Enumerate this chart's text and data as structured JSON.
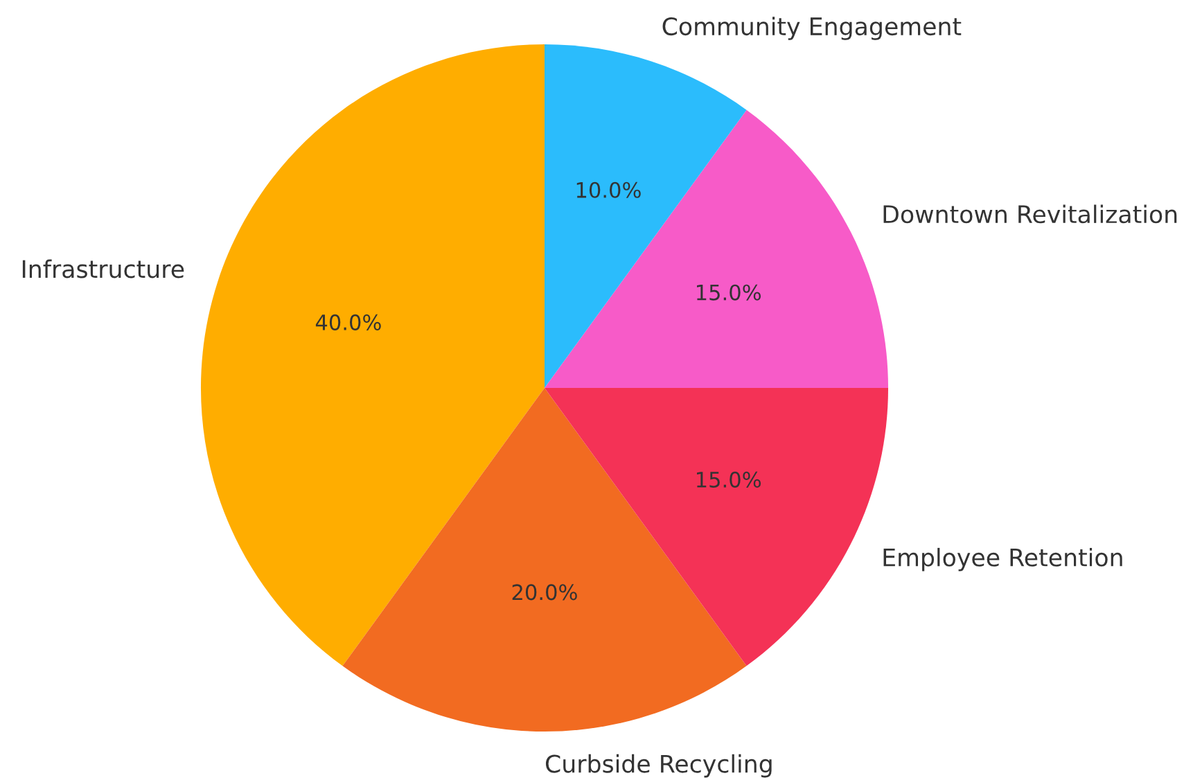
{
  "chart_data": {
    "type": "pie",
    "categories": [
      "Infrastructure",
      "Curbside Recycling",
      "Employee Retention",
      "Downtown Revitalization",
      "Community Engagement"
    ],
    "values": [
      40,
      20,
      15,
      15,
      10
    ],
    "value_labels": [
      "40.0%",
      "20.0%",
      "15.0%",
      "15.0%",
      "10.0%"
    ],
    "colors": [
      "#ffad00",
      "#f26b21",
      "#f43256",
      "#f75bc8",
      "#2bbcfc"
    ],
    "legend": false
  }
}
